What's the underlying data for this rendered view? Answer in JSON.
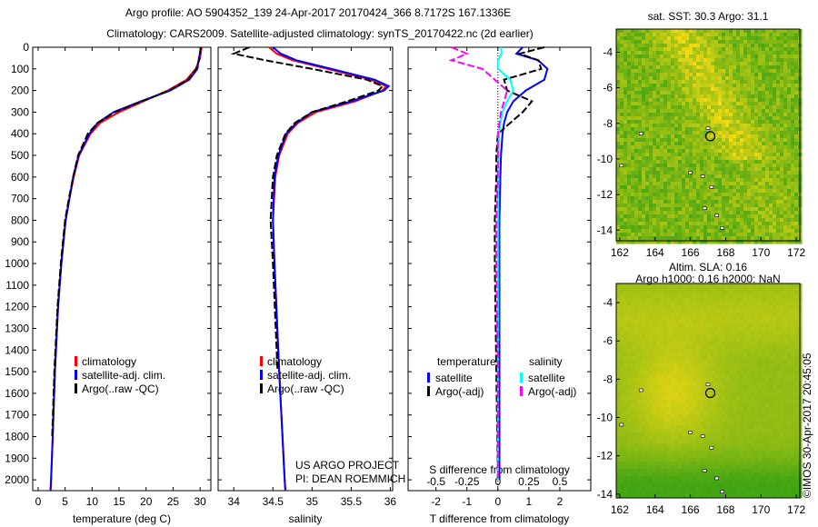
{
  "title_line1": "Argo profile: AO 5904352_139 24-Apr-2017 20170424_366 8.7172S 167.1336E",
  "title_line2": "Climatology: CARS2009. Satellite-adjusted climatology: synTS_20170422.nc (2d earlier)",
  "credit": "©IMOS 30-Apr-2017 20:45:05",
  "project_line1": "US ARGO PROJECT",
  "project_line2": "PI: DEAN ROEMMICH",
  "colors": {
    "clim": "#ff0000",
    "sat": "#0000ff",
    "argo": "#000000",
    "sal_sat": "#00ffff",
    "sal_argo": "#ff00ff"
  },
  "chart_data": [
    {
      "type": "line",
      "name": "temperature",
      "xlabel": "temperature (deg C)",
      "xlim": [
        -1,
        32
      ],
      "ylim": [
        2050,
        0
      ],
      "xticks": [
        0,
        5,
        10,
        15,
        20,
        25,
        30
      ],
      "yticks": [
        0,
        100,
        200,
        300,
        400,
        500,
        600,
        700,
        800,
        900,
        1000,
        1100,
        1200,
        1300,
        1400,
        1500,
        1600,
        1700,
        1800,
        1900,
        2000
      ],
      "legend": [
        "climatology",
        "satellite-adj. clim.",
        "Argo(..raw -QC)"
      ],
      "depth": [
        0,
        50,
        100,
        150,
        200,
        250,
        300,
        350,
        400,
        500,
        600,
        700,
        800,
        1000,
        1200,
        1500,
        1800,
        2000,
        2050
      ],
      "series": [
        {
          "name": "climatology",
          "color": "clim",
          "values": [
            30.3,
            30,
            29.2,
            27.5,
            24,
            19.5,
            15,
            11.5,
            9.7,
            7.6,
            6.6,
            5.8,
            5.1,
            4.3,
            3.7,
            3.1,
            2.7,
            2.4,
            2.3
          ]
        },
        {
          "name": "satellite-adj. clim.",
          "color": "sat",
          "values": [
            30.2,
            29.8,
            29.5,
            28,
            24.5,
            19,
            14,
            11,
            9.5,
            7.5,
            6.5,
            5.8,
            5.1,
            4.3,
            3.7,
            3.1,
            2.7,
            2.4,
            2.3
          ]
        },
        {
          "name": "Argo(..raw -QC)",
          "color": "argo",
          "values": [
            30.1,
            29.9,
            29.3,
            27.8,
            24.3,
            19.2,
            14.2,
            11,
            9.2,
            7.4,
            6.5,
            5.7,
            5.0,
            4.2,
            3.6,
            3.0,
            2.6,
            null,
            null
          ],
          "dash": true
        }
      ]
    },
    {
      "type": "line",
      "name": "salinity",
      "xlabel": "salinity",
      "xlim": [
        33.8,
        36.03
      ],
      "ylim": [
        2050,
        0
      ],
      "xticks": [
        34,
        34.5,
        35,
        35.5,
        36
      ],
      "legend": [
        "climatology",
        "satellite-adj. clim.",
        "Argo(..raw -QC)"
      ],
      "depth": [
        0,
        30,
        60,
        100,
        150,
        180,
        200,
        250,
        300,
        350,
        400,
        500,
        600,
        800,
        1000,
        1500,
        2000,
        2050
      ],
      "series": [
        {
          "name": "climatology",
          "color": "clim",
          "values": [
            34.45,
            34.55,
            34.75,
            35.2,
            35.75,
            35.95,
            35.9,
            35.55,
            35.05,
            34.82,
            34.69,
            34.58,
            34.53,
            34.5,
            34.52,
            34.58,
            34.65,
            34.66
          ]
        },
        {
          "name": "satellite-adj. clim.",
          "color": "sat",
          "values": [
            34.5,
            34.6,
            34.8,
            35.25,
            35.8,
            35.98,
            35.92,
            35.5,
            35.0,
            34.8,
            34.67,
            34.57,
            34.52,
            34.5,
            34.52,
            34.58,
            34.65,
            34.66
          ]
        },
        {
          "name": "Argo(..raw -QC)",
          "color": "argo",
          "values": [
            34.2,
            34.0,
            34.4,
            35.0,
            35.7,
            35.9,
            35.85,
            35.45,
            35.0,
            34.78,
            34.66,
            34.55,
            34.5,
            34.47,
            34.5,
            34.56,
            null,
            null
          ],
          "dash": true
        }
      ]
    },
    {
      "type": "line",
      "name": "difference",
      "xlabel": "T difference from climatology",
      "x2label": "S difference from climatology",
      "xlim": [
        -2.9,
        3.0
      ],
      "ylim": [
        2050,
        0
      ],
      "xticks": [
        -2,
        -1,
        0,
        1,
        2
      ],
      "x2ticks": [
        "-0.5",
        "-0.25",
        "0",
        "0.25",
        "0.5"
      ],
      "legend_headers": [
        "temperature",
        "salinity"
      ],
      "legend": [
        "satellite",
        "Argo(-adj)",
        "satellite",
        "Argo(-adj)"
      ],
      "depth": [
        0,
        30,
        60,
        100,
        150,
        200,
        250,
        300,
        350,
        400,
        500,
        600,
        800,
        1000,
        1500,
        2000
      ],
      "series": [
        {
          "name": "T satellite",
          "color": "sat",
          "values": [
            0.8,
            0.6,
            1.3,
            1.6,
            1.5,
            0.9,
            0.5,
            0.3,
            0.2,
            0.15,
            0.1,
            0.08,
            0.05,
            0.05,
            0.05,
            0.05
          ]
        },
        {
          "name": "T Argo(-adj)",
          "color": "argo",
          "values": [
            1.5,
            0.7,
            1.3,
            1.4,
            0.2,
            0.3,
            1.1,
            0.8,
            0.4,
            0,
            -0.05,
            -0.05,
            -0.1,
            -0.1,
            -0.05,
            0
          ],
          "dash": true
        },
        {
          "name": "S satellite",
          "color": "sal_sat",
          "values": [
            0.1,
            0.12,
            0,
            0,
            0.4,
            0.5,
            0.3,
            0.15,
            0.08,
            0.04,
            0.02,
            0.01,
            0,
            0,
            0,
            0
          ]
        },
        {
          "name": "S Argo(-adj)",
          "color": "sal_argo",
          "values": [
            -1.5,
            -1.0,
            -1.5,
            -0.5,
            -0.1,
            0.3,
            0.2,
            0.1,
            0.05,
            0,
            0,
            0,
            -0.05,
            -0.05,
            0,
            0
          ],
          "dash": true
        }
      ]
    },
    {
      "type": "heatmap",
      "name": "sst-map",
      "title": "sat. SST: 30.3 Argo: 31.1",
      "xticks": [
        162,
        164,
        166,
        168,
        170,
        172
      ],
      "yticks": [
        -4,
        -6,
        -8,
        -10,
        -12,
        -14
      ],
      "xlim": [
        161.8,
        172.2
      ],
      "ylim": [
        -14.6,
        -2.7
      ],
      "marker": [
        167.13,
        -8.72
      ]
    },
    {
      "type": "heatmap",
      "name": "sla-map",
      "title": "Altim. SLA: 0.16",
      "subtitle": "Argo h1000: 0.16 h2000: NaN",
      "xticks": [
        162,
        164,
        166,
        168,
        170,
        172
      ],
      "yticks": [
        -4,
        -6,
        -8,
        -10,
        -12,
        -14
      ],
      "xlim": [
        161.8,
        172.2
      ],
      "ylim": [
        -14.2,
        -3.0
      ],
      "marker": [
        167.13,
        -8.72
      ]
    }
  ]
}
